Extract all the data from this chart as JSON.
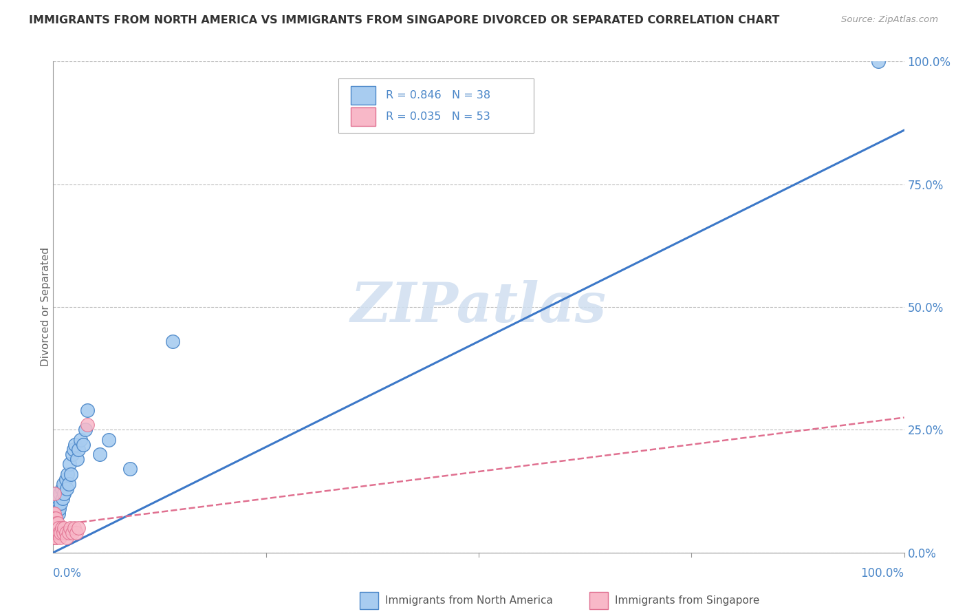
{
  "title": "IMMIGRANTS FROM NORTH AMERICA VS IMMIGRANTS FROM SINGAPORE DIVORCED OR SEPARATED CORRELATION CHART",
  "source": "Source: ZipAtlas.com",
  "R_blue": 0.846,
  "N_blue": 38,
  "R_pink": 0.035,
  "N_pink": 53,
  "legend_label_blue": "Immigrants from North America",
  "legend_label_pink": "Immigrants from Singapore",
  "blue_color": "#A8CCF0",
  "blue_edge_color": "#4A86C8",
  "pink_color": "#F8B8C8",
  "pink_edge_color": "#E07090",
  "line_blue_color": "#3C78C8",
  "line_pink_color": "#E07090",
  "background_color": "#FFFFFF",
  "grid_color": "#BBBBBB",
  "axis_color": "#999999",
  "label_color": "#4A86C8",
  "text_color": "#333333",
  "watermark_color": "#D0DFF0",
  "watermark": "ZIPatlas",
  "ylabel_text": "Divorced or Separated",
  "blue_scatter_x": [
    0.97,
    0.001,
    0.001,
    0.002,
    0.002,
    0.003,
    0.003,
    0.003,
    0.004,
    0.005,
    0.006,
    0.006,
    0.007,
    0.008,
    0.009,
    0.01,
    0.011,
    0.012,
    0.013,
    0.015,
    0.016,
    0.017,
    0.018,
    0.019,
    0.021,
    0.022,
    0.024,
    0.026,
    0.028,
    0.03,
    0.032,
    0.035,
    0.038,
    0.04,
    0.055,
    0.065,
    0.09,
    0.14
  ],
  "blue_scatter_y": [
    1.0,
    0.03,
    0.07,
    0.06,
    0.09,
    0.05,
    0.08,
    0.12,
    0.07,
    0.1,
    0.08,
    0.11,
    0.09,
    0.12,
    0.1,
    0.13,
    0.11,
    0.14,
    0.12,
    0.15,
    0.13,
    0.16,
    0.14,
    0.18,
    0.16,
    0.2,
    0.21,
    0.22,
    0.19,
    0.21,
    0.23,
    0.22,
    0.25,
    0.29,
    0.2,
    0.23,
    0.17,
    0.43
  ],
  "pink_scatter_x": [
    0.0002,
    0.0003,
    0.0004,
    0.0004,
    0.0005,
    0.0005,
    0.0006,
    0.0007,
    0.0008,
    0.0009,
    0.001,
    0.001,
    0.001,
    0.0012,
    0.0013,
    0.0014,
    0.0015,
    0.0016,
    0.0017,
    0.0018,
    0.002,
    0.002,
    0.0022,
    0.0023,
    0.0025,
    0.0027,
    0.003,
    0.003,
    0.003,
    0.0033,
    0.0035,
    0.004,
    0.004,
    0.0045,
    0.005,
    0.005,
    0.006,
    0.006,
    0.007,
    0.008,
    0.009,
    0.01,
    0.012,
    0.013,
    0.015,
    0.016,
    0.018,
    0.02,
    0.022,
    0.025,
    0.027,
    0.03,
    0.04
  ],
  "pink_scatter_y": [
    0.04,
    0.06,
    0.05,
    0.08,
    0.04,
    0.07,
    0.05,
    0.06,
    0.04,
    0.03,
    0.05,
    0.08,
    0.12,
    0.04,
    0.06,
    0.07,
    0.05,
    0.04,
    0.06,
    0.05,
    0.04,
    0.07,
    0.05,
    0.03,
    0.06,
    0.04,
    0.03,
    0.05,
    0.07,
    0.04,
    0.05,
    0.04,
    0.06,
    0.05,
    0.04,
    0.06,
    0.04,
    0.05,
    0.04,
    0.03,
    0.04,
    0.05,
    0.04,
    0.05,
    0.04,
    0.03,
    0.04,
    0.05,
    0.04,
    0.05,
    0.04,
    0.05,
    0.26
  ],
  "blue_line_x0": 0.0,
  "blue_line_y0": 0.0,
  "blue_line_x1": 1.0,
  "blue_line_y1": 0.86,
  "pink_line_x0": 0.0,
  "pink_line_y0": 0.055,
  "pink_line_x1": 1.0,
  "pink_line_y1": 0.275,
  "xlim": [
    0.0,
    1.0
  ],
  "ylim": [
    0.0,
    1.0
  ],
  "ytick_vals": [
    0.0,
    0.25,
    0.5,
    0.75,
    1.0
  ],
  "ytick_labels": [
    "0.0%",
    "25.0%",
    "50.0%",
    "75.0%",
    "100.0%"
  ],
  "xtick_labels_left": "0.0%",
  "xtick_labels_right": "100.0%"
}
